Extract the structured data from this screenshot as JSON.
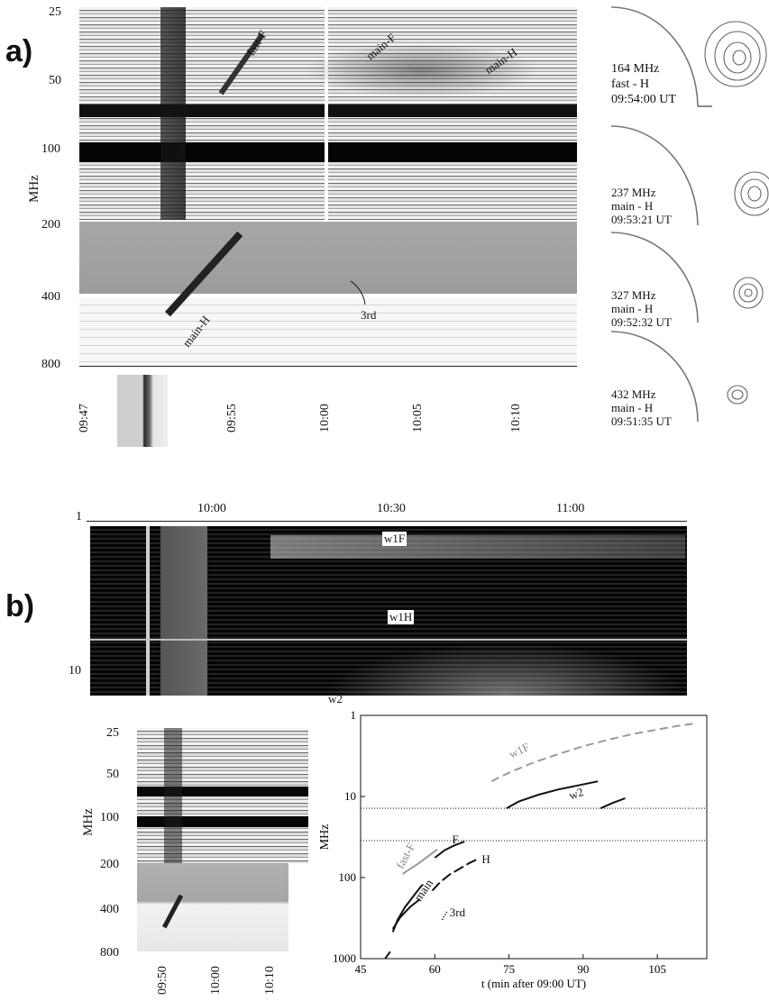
{
  "panel_a": {
    "label": "a)",
    "y_axis_label": "MHz",
    "y_ticks": [
      "25",
      "50",
      "100",
      "200",
      "400",
      "800"
    ],
    "x_ticks": [
      "09:47",
      "09:55",
      "10:00",
      "10:05",
      "10:10"
    ],
    "annotations": [
      "fast-F",
      "main-F",
      "main-H",
      "main-H",
      "3rd"
    ],
    "images": [
      {
        "freq": "164 MHz",
        "type": "fast - H",
        "time": "09:54:00 UT"
      },
      {
        "freq": "237 MHz",
        "type": "main - H",
        "time": "09:53:21 UT"
      },
      {
        "freq": "327 MHz",
        "type": "main - H",
        "time": "09:52:32 UT"
      },
      {
        "freq": "432 MHz",
        "type": "main - H",
        "time": "09:51:35 UT"
      }
    ]
  },
  "panel_b": {
    "label": "b)",
    "top_x_ticks": [
      "10:00",
      "10:30",
      "11:00"
    ],
    "left_y_ticks": [
      "1",
      "10"
    ],
    "annotations": [
      "w1F",
      "w1H",
      "w2"
    ],
    "small_spectrum": {
      "y_axis_label": "MHz",
      "y_ticks": [
        "25",
        "50",
        "100",
        "200",
        "400",
        "800"
      ],
      "x_ticks": [
        "09:50",
        "10:00",
        "10:10"
      ]
    }
  },
  "chart_data": {
    "type": "line",
    "xlabel": "t  (min  after  09:00 UT)",
    "ylabel": "MHz",
    "xlim": [
      45,
      115
    ],
    "ylim": [
      1,
      1000
    ],
    "y_scale": "log-inverted",
    "x_ticks": [
      "45",
      "60",
      "75",
      "90",
      "105"
    ],
    "y_ticks": [
      "1",
      "10",
      "100",
      "1000"
    ],
    "reference_lines_mhz": [
      14,
      35
    ],
    "series": [
      {
        "name": "w1F",
        "color": "#999999",
        "dash": "dashed",
        "x": [
          71.5,
          73,
          76,
          80,
          85,
          90,
          95,
          100,
          105,
          109,
          113
        ],
        "y": [
          6.5,
          5.8,
          4.8,
          3.8,
          3.0,
          2.4,
          2.0,
          1.7,
          1.5,
          1.35,
          1.25
        ]
      },
      {
        "name": "w2",
        "color": "#111111",
        "dash": "solid",
        "x": [
          74.5,
          77,
          81,
          85,
          89,
          93
        ],
        "y": [
          14,
          11.5,
          9.5,
          8.2,
          7.3,
          6.5
        ]
      },
      {
        "name": "w2",
        "color": "#111111",
        "dash": "solid",
        "x": [
          93.5,
          96,
          98.5
        ],
        "y": [
          14,
          12,
          10.5
        ]
      },
      {
        "name": "fast-F",
        "color": "#999999",
        "dash": "solid",
        "x": [
          53.5,
          57,
          60.5
        ],
        "y": [
          90,
          65,
          45
        ]
      },
      {
        "name": "F",
        "color": "#111111",
        "dash": "solid",
        "x": [
          60,
          62,
          64,
          66
        ],
        "y": [
          57,
          46,
          40,
          36
        ]
      },
      {
        "name": "H",
        "color": "#111111",
        "dash": "long-dash",
        "x": [
          59.5,
          61,
          63,
          65,
          67,
          69
        ],
        "y": [
          145,
          115,
          92,
          78,
          66,
          58
        ]
      },
      {
        "name": "main",
        "color": "#111111",
        "dash": "solid",
        "x": [
          51.5,
          52.5,
          54,
          56,
          57.5
        ],
        "y": [
          470,
          330,
          230,
          160,
          122
        ]
      },
      {
        "name": "main",
        "color": "#111111",
        "dash": "solid",
        "x": [
          51.5,
          53,
          55,
          57
        ],
        "y": [
          430,
          310,
          230,
          185
        ]
      },
      {
        "name": "3rd",
        "color": "#111111",
        "dash": "dotted",
        "x": [
          61.5,
          62.5
        ],
        "y": [
          330,
          260
        ]
      },
      {
        "name": "",
        "color": "#111111",
        "dash": "solid",
        "x": [
          50,
          51
        ],
        "y": [
          990,
          820
        ]
      }
    ],
    "labels": [
      "w1F",
      "w2",
      "fast-F",
      "F",
      "H",
      "main",
      "3rd"
    ]
  }
}
